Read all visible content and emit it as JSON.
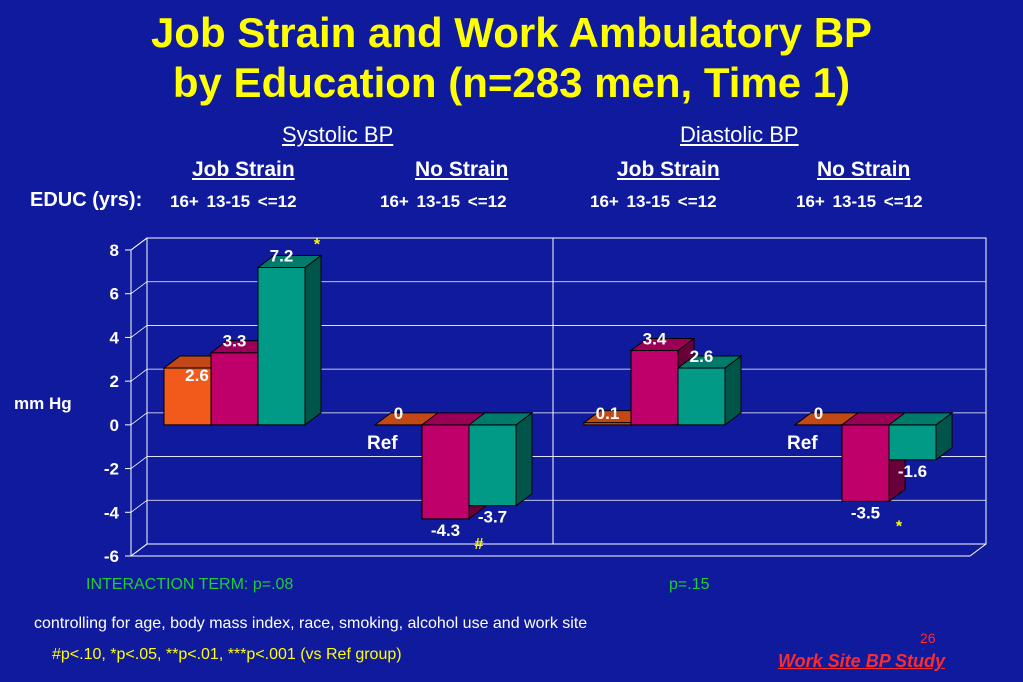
{
  "title_line1": "Job Strain and Work Ambulatory BP",
  "title_line2": "by Education (n=283 men, Time 1)",
  "sections": {
    "systolic": "Systolic BP",
    "diastolic": "Diastolic BP"
  },
  "groups": {
    "sys_job": "Job Strain",
    "sys_no": "No Strain",
    "dia_job": "Job Strain",
    "dia_no": "No Strain"
  },
  "educ": {
    "label": "EDUC (yrs):",
    "sys_job": "16+  13-15  <=12",
    "sys_no": "16+  13-15  <=12",
    "dia_job": "16+  13-15  <=12",
    "dia_no": "16+  13-15  <=12"
  },
  "ylabel": "mm Hg",
  "interaction": {
    "label": "INTERACTION TERM:  p=.08",
    "p_diastolic": "p=.15"
  },
  "footnote1": "controlling for age, body mass index, race, smoking, alcohol use and work site",
  "footnote2": "#p<.10, *p<.05, **p<.01, ***p<.001 (vs Ref group)",
  "page_number": "26",
  "study_label": "Work Site BP Study",
  "colors": {
    "background": "#0f1a9c",
    "title": "#ffff00",
    "educ_16plus": "#f25a1c",
    "educ_13_15": "#c0006a",
    "educ_le12": "#009a86"
  },
  "chart_data": {
    "type": "bar",
    "ylim": [
      -6,
      8
    ],
    "yticks": [
      "8",
      "6",
      "4",
      "2",
      "0",
      "-2",
      "-4",
      "-6"
    ],
    "ytick_values": [
      8,
      6,
      4,
      2,
      0,
      -2,
      -4,
      -6
    ],
    "ylabel": "mm Hg",
    "grid": true,
    "series": [
      "16+",
      "13-15",
      "<=12"
    ],
    "groups": [
      {
        "section": "Systolic BP",
        "strain": "Job Strain",
        "values": [
          2.6,
          3.3,
          7.2
        ],
        "labels": [
          "2.6",
          "3.3",
          "7.2"
        ],
        "ref": "",
        "marks": {
          "2": "*"
        }
      },
      {
        "section": "Systolic BP",
        "strain": "No Strain",
        "values": [
          0,
          -4.3,
          -3.7
        ],
        "labels": [
          "0",
          "-4.3",
          "-3.7"
        ],
        "ref": "Ref",
        "marks": {
          "1": "#"
        }
      },
      {
        "section": "Diastolic BP",
        "strain": "Job Strain",
        "values": [
          0.1,
          3.4,
          2.6
        ],
        "labels": [
          "0.1",
          "3.4",
          "2.6"
        ],
        "ref": "",
        "marks": {}
      },
      {
        "section": "Diastolic BP",
        "strain": "No Strain",
        "values": [
          0,
          -3.5,
          -1.6
        ],
        "labels": [
          "0",
          "-3.5",
          "-1.6"
        ],
        "ref": "Ref",
        "marks": {
          "1": "*"
        }
      }
    ]
  }
}
